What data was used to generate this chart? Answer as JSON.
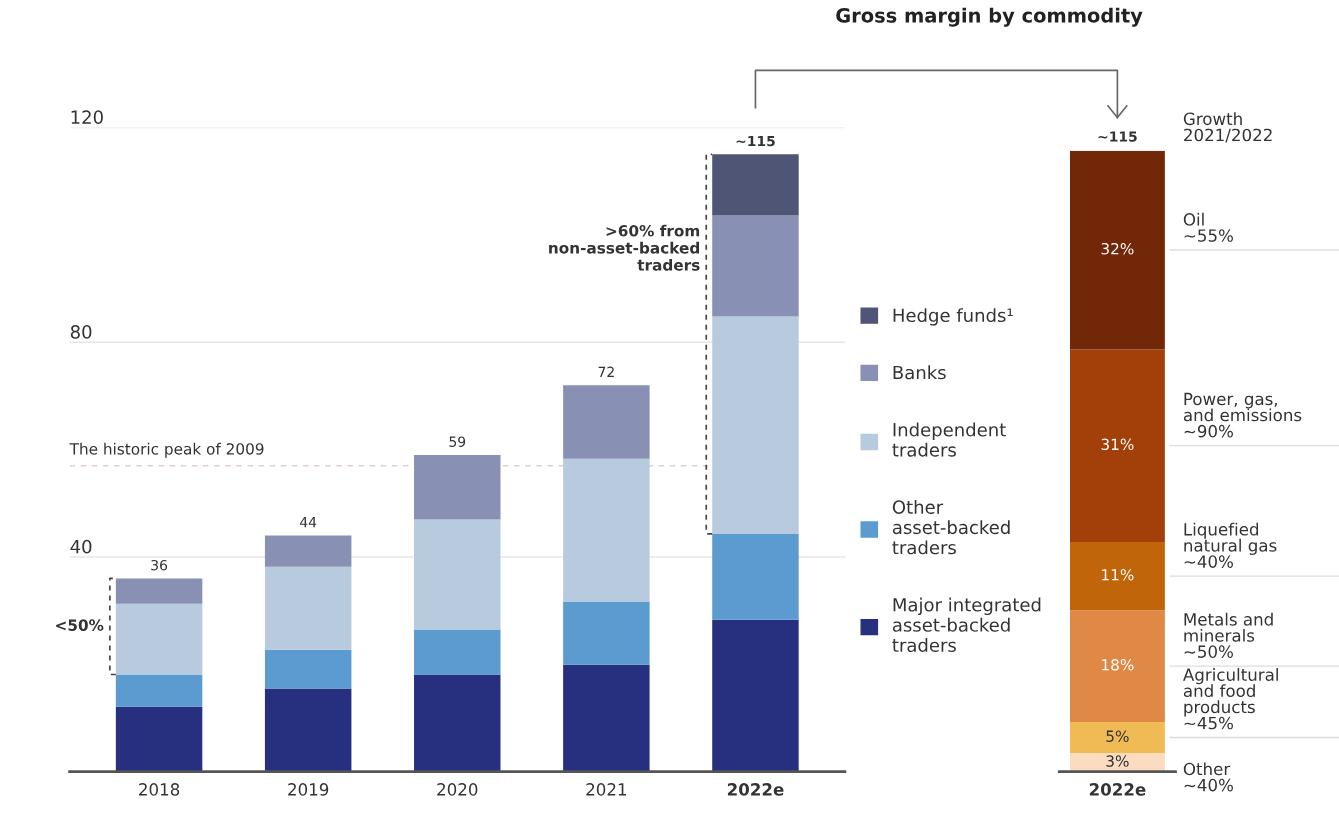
{
  "chart_data": [
    {
      "type": "bar",
      "stacked": true,
      "categories": [
        "2018",
        "2019",
        "2020",
        "2021",
        "2022e"
      ],
      "series": [
        {
          "name": "Major integrated\nasset-backed\ntraders",
          "color": "#27307f",
          "values": [
            12.1,
            15.5,
            18.1,
            19.9,
            28.3
          ]
        },
        {
          "name": "Other\nasset-backed\ntraders",
          "color": "#5b9bd0",
          "values": [
            6.0,
            7.2,
            8.4,
            11.8,
            16.0
          ]
        },
        {
          "name": "Independent\ntraders",
          "color": "#b8cadd",
          "values": [
            13.2,
            15.5,
            20.5,
            26.6,
            40.5
          ]
        },
        {
          "name": "Banks",
          "color": "#8891b4",
          "values": [
            4.7,
            5.8,
            12.0,
            13.7,
            18.8
          ]
        },
        {
          "name": "Hedge funds¹",
          "color": "#4f5675",
          "values": [
            null,
            null,
            null,
            null,
            11.4
          ]
        }
      ],
      "totals": [
        "36",
        "44",
        "59",
        "72",
        "~115"
      ],
      "ylim": [
        0,
        120
      ],
      "yticks": [
        40,
        80,
        120
      ],
      "grid": "y",
      "legend": "right",
      "ref_lines": [
        {
          "axis": "y",
          "value": 57,
          "label": "The historic peak of 2009",
          "line_style": "dashed",
          "color": "#e0d0d0"
        }
      ],
      "annotations": [
        "<50%",
        ">60% from\nnon-asset-backed\ntraders"
      ]
    },
    {
      "type": "bar",
      "stacked": true,
      "title": "Gross margin by commodity",
      "legend_title": "Growth\n2021/2022",
      "categories": [
        "2022e"
      ],
      "series": [
        {
          "name": "Other\n~40%",
          "color": "#fbdcc0",
          "values": [
            3
          ],
          "value_labels": [
            "3%"
          ]
        },
        {
          "name": "Agricultural\nand food\nproducts\n~45%",
          "color": "#f0bb55",
          "values": [
            5
          ],
          "value_labels": [
            "5%"
          ]
        },
        {
          "name": "Metals and\nminerals\n~50%",
          "color": "#e08845",
          "values": [
            18
          ],
          "value_labels": [
            "18%"
          ]
        },
        {
          "name": "Liquefied\nnatural gas\n~40%",
          "color": "#c0650a",
          "values": [
            11
          ],
          "value_labels": [
            "11%"
          ]
        },
        {
          "name": "Power, gas,\nand emissions\n~90%",
          "color": "#a3400a",
          "values": [
            31
          ],
          "value_labels": [
            "31%"
          ]
        },
        {
          "name": "Oil\n~55%",
          "color": "#722808",
          "values": [
            32
          ],
          "value_labels": [
            "32%"
          ]
        }
      ],
      "annotations": [
        "~115"
      ],
      "legend": false
    }
  ]
}
